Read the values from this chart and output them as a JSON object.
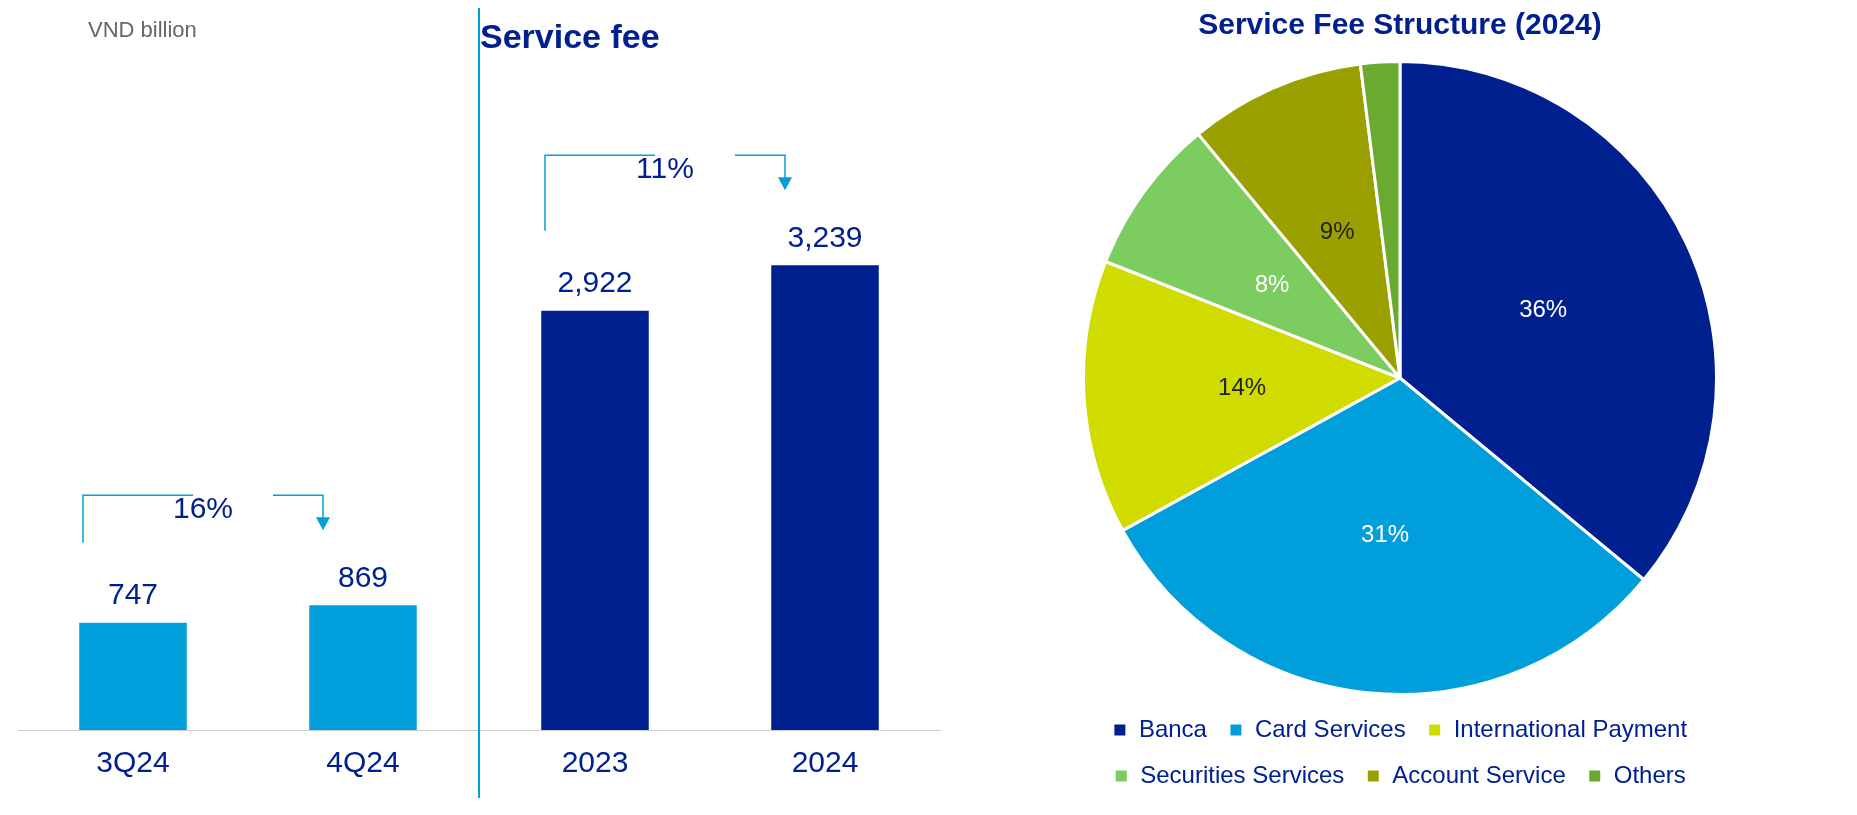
{
  "chart_data": [
    {
      "type": "bar",
      "categories": [
        "3Q24",
        "4Q24"
      ],
      "values": [
        747,
        869
      ],
      "colors": [
        "#009fdb",
        "#009fdb"
      ],
      "value_labels": [
        "747",
        "869"
      ],
      "annotations": [
        "VND billion",
        "16%"
      ],
      "grid": false,
      "legend": false
    },
    {
      "type": "bar",
      "title": "Service fee",
      "categories": [
        "2023",
        "2024"
      ],
      "values": [
        2922,
        3239
      ],
      "colors": [
        "#00208f",
        "#00208f"
      ],
      "value_labels": [
        "2,922",
        "3,239"
      ],
      "annotations": [
        "11%"
      ],
      "grid": false,
      "legend": false
    },
    {
      "type": "pie",
      "title": "Service Fee Structure (2024)",
      "categories": [
        "Banca",
        "Card Services",
        "International Payment",
        "Securities Services",
        "Account Service",
        "Others"
      ],
      "values": [
        36,
        31,
        14,
        8,
        9,
        2
      ],
      "colors": [
        "#00208f",
        "#009fdb",
        "#d0dc00",
        "#7ccc60",
        "#9aa000",
        "#6aaa30"
      ],
      "value_labels": [
        "36%",
        "31%",
        "14%",
        "8%",
        "9%",
        null
      ],
      "legend": "bottom"
    }
  ]
}
